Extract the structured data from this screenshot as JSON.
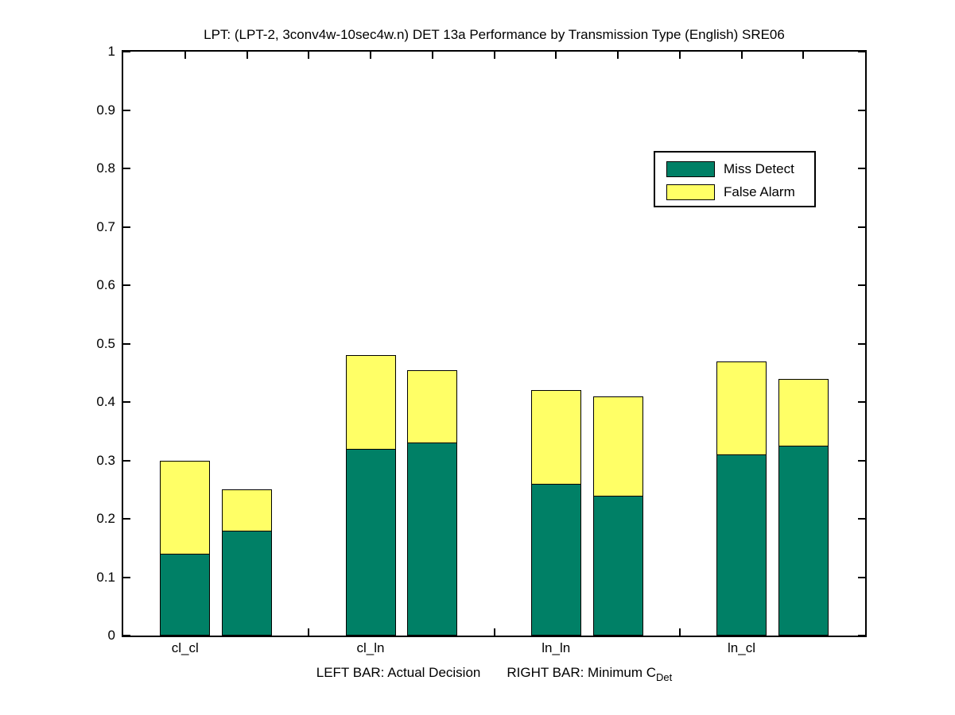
{
  "chart_data": {
    "type": "bar",
    "subtype": "stacked-paired",
    "title": "LPT: (LPT-2, 3conv4w-10sec4w.n) DET 13a Performance by Transmission Type (English) SRE06",
    "xlabel": {
      "left": "LEFT BAR: Actual Decision",
      "right": "RIGHT BAR: Minimum C",
      "right_subscript": "Det"
    },
    "categories": [
      "cl_cl",
      "cl_ln",
      "ln_ln",
      "ln_cl"
    ],
    "series": [
      {
        "name": "Miss Detect",
        "color": "#008066",
        "actual_decision": [
          0.14,
          0.32,
          0.26,
          0.31
        ],
        "minimum_cdet": [
          0.18,
          0.33,
          0.24,
          0.325
        ]
      },
      {
        "name": "False Alarm",
        "color": "#ffff66",
        "actual_decision": [
          0.16,
          0.16,
          0.16,
          0.16
        ],
        "minimum_cdet": [
          0.07,
          0.125,
          0.17,
          0.115
        ]
      }
    ],
    "bar_totals": {
      "actual_decision": [
        0.3,
        0.48,
        0.42,
        0.47
      ],
      "minimum_cdet": [
        0.25,
        0.455,
        0.41,
        0.44
      ]
    },
    "legend": {
      "position": "upper-right"
    },
    "axes": {
      "ylim": [
        0,
        1
      ],
      "yticks": [
        0,
        0.1,
        0.2,
        0.3,
        0.4,
        0.5,
        0.6,
        0.7,
        0.8,
        0.9,
        1
      ],
      "ytick_labels": [
        "0",
        "0.1",
        "0.2",
        "0.3",
        "0.4",
        "0.5",
        "0.6",
        "0.7",
        "0.8",
        "0.9",
        "1"
      ],
      "xlim": [
        0,
        12
      ],
      "bar_pair_positions": [
        [
          1,
          2
        ],
        [
          4,
          5
        ],
        [
          7,
          8
        ],
        [
          10,
          11
        ]
      ],
      "top_tick_positions": [
        1,
        2,
        3,
        4,
        5,
        6,
        7,
        8,
        9,
        10,
        11
      ],
      "bottom_tick_positions": [
        3,
        6,
        9
      ],
      "grid": false,
      "axis_color": "#000000",
      "background": "#ffffff"
    }
  }
}
